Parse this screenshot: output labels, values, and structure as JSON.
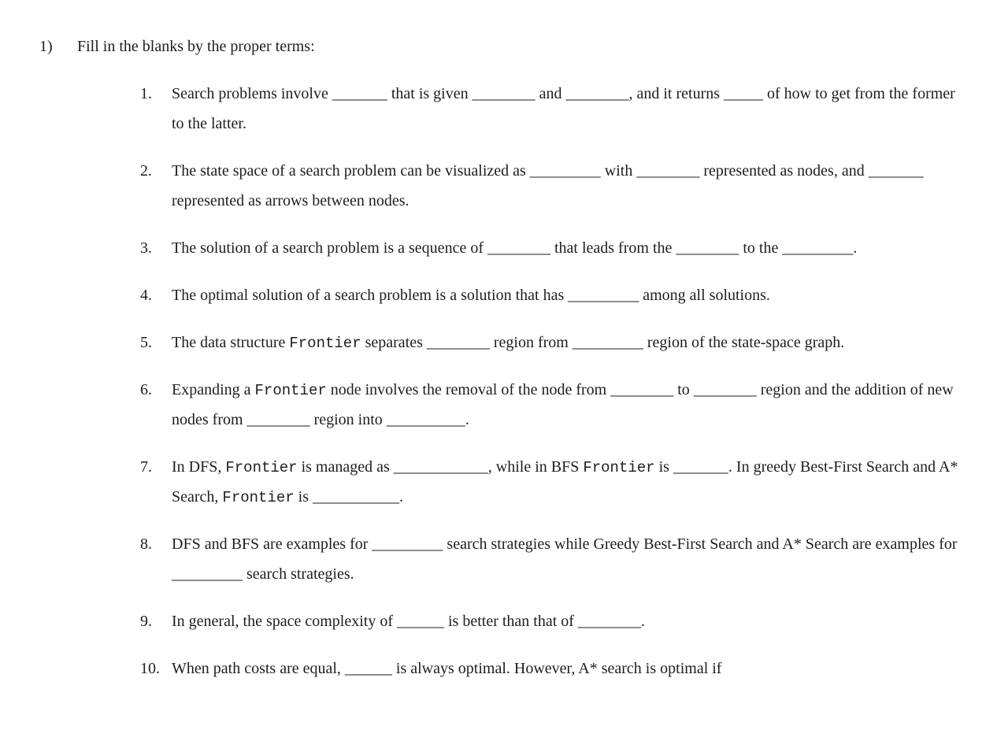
{
  "page": {
    "background_color": "#ffffff",
    "text_color": "#1e1e1e",
    "font_family": "Times New Roman",
    "mono_font_family": "Courier New",
    "font_size_pt": 15,
    "line_height": 1.9
  },
  "question": {
    "number": "1)",
    "heading": "Fill in the blanks by the proper terms:",
    "items": [
      {
        "n": "1.",
        "parts": [
          {
            "t": "Search problems involve _______ that is given ________ and ________, and it returns _____ of how to get from the former to the latter."
          }
        ]
      },
      {
        "n": "2.",
        "parts": [
          {
            "t": "The state space of a search problem can be visualized as _________ with ________ represented as nodes, and _______ represented as arrows between nodes."
          }
        ]
      },
      {
        "n": "3.",
        "parts": [
          {
            "t": "The solution of a search problem is a sequence of ________ that leads from the ________ to the _________."
          }
        ]
      },
      {
        "n": "4.",
        "parts": [
          {
            "t": "The optimal solution of a search problem is a solution that has _________ among all solutions."
          }
        ]
      },
      {
        "n": "5.",
        "parts": [
          {
            "t": "The data structure "
          },
          {
            "t": "Frontier",
            "mono": true
          },
          {
            "t": " separates ________ region from _________ region of the state-space graph."
          }
        ]
      },
      {
        "n": "6.",
        "parts": [
          {
            "t": "Expanding a "
          },
          {
            "t": "Frontier",
            "mono": true
          },
          {
            "t": " node involves the removal of the node from ________ to ________ region and the addition of new nodes from ________ region into __________."
          }
        ]
      },
      {
        "n": "7.",
        "parts": [
          {
            "t": "In DFS, "
          },
          {
            "t": "Frontier",
            "mono": true
          },
          {
            "t": " is managed as ____________, while in BFS "
          },
          {
            "t": "Frontier",
            "mono": true
          },
          {
            "t": " is _______. In greedy Best-First Search and A* Search, "
          },
          {
            "t": "Frontier",
            "mono": true
          },
          {
            "t": " is ___________."
          }
        ]
      },
      {
        "n": "8.",
        "parts": [
          {
            "t": "DFS and BFS are examples for _________ search strategies while Greedy Best-First Search and A* Search are examples for _________ search strategies."
          }
        ]
      },
      {
        "n": "9.",
        "parts": [
          {
            "t": "In general, the space complexity of ______ is better than that of ________."
          }
        ]
      },
      {
        "n": "10.",
        "parts": [
          {
            "t": "When path costs are equal, ______ is always optimal. However, A* search is optimal if"
          }
        ]
      }
    ]
  }
}
